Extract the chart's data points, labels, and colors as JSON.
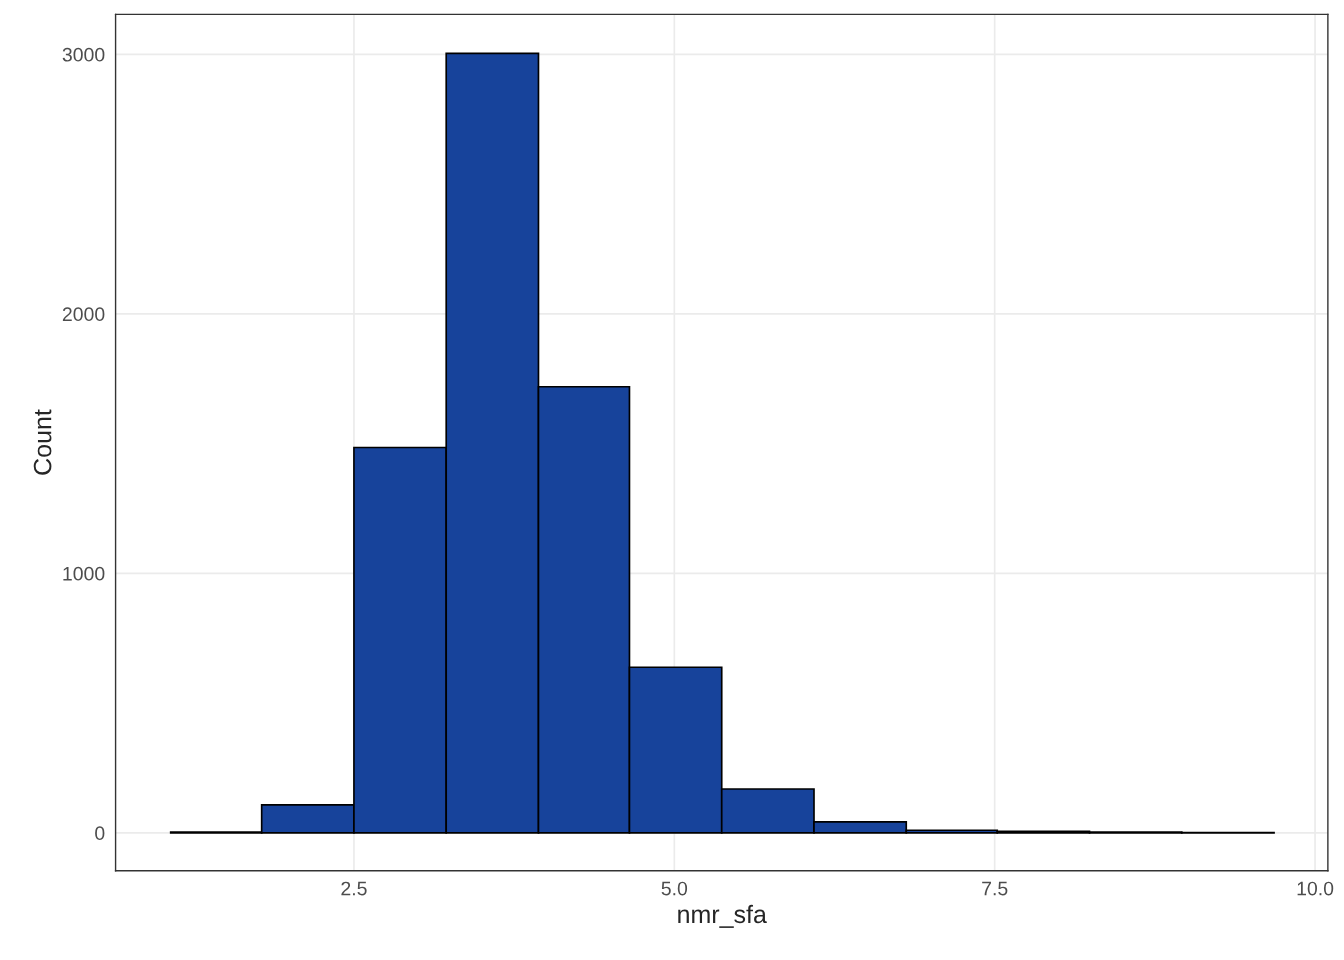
{
  "chart_data": {
    "type": "histogram",
    "xlabel": "nmr_sfa",
    "ylabel": "Count",
    "color": "#17439b",
    "bins": [
      1.07,
      1.78,
      2.5,
      3.22,
      3.94,
      4.65,
      5.37,
      6.09,
      6.81,
      7.52,
      8.24,
      8.96,
      9.68
    ],
    "values": [
      3,
      108,
      1485,
      3004,
      1719,
      638,
      169,
      42,
      10,
      6,
      3,
      1
    ],
    "xlim": [
      0.64,
      10.1
    ],
    "ylim": [
      -146,
      3154
    ],
    "xticks": [
      {
        "value": 2.5,
        "label": "2.5"
      },
      {
        "value": 5.0,
        "label": "5.0"
      },
      {
        "value": 7.5,
        "label": "7.5"
      },
      {
        "value": 10.0,
        "label": "10.0"
      }
    ],
    "yticks": [
      0,
      1000,
      2000,
      3000
    ],
    "grid": true
  }
}
